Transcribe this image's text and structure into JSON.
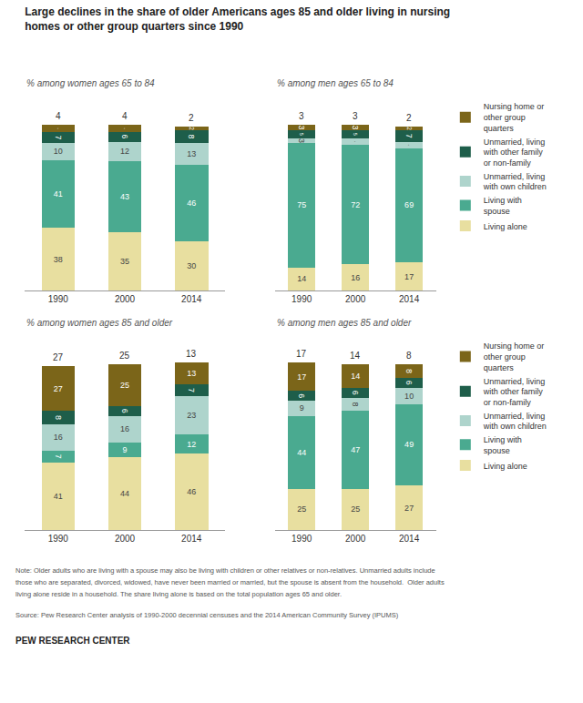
{
  "title": "Large declines in the share of older Americans ages 85 and older living in nursing\nhomes or other group quarters since 1990",
  "annotations": [
    "Note: Older adults who are living with a spouse may also be living with children or other relatives or non-relatives. Unmarried adults include",
    "those who are separated, divorced, widowed, have never been married or married, but the spouse is absent from the household.  Older adults",
    "living alone reside in a household. The share living alone is based on the total population ages 65 and older.",
    "Source: Pew Research Center analysis of 1990-2000 decennial censuses and the 2014 American Community Survey (IPUMS)",
    "PEW RESEARCH CENTER"
  ],
  "chart_data": [
    {
      "type": "bar",
      "subtitle": "% among women ages 65 to 84",
      "categories": [
        "1990",
        "2000",
        "2014"
      ],
      "series": [
        {
          "name": "Living alone",
          "color": "#e8dfa0",
          "values": [
            38,
            35,
            30
          ]
        },
        {
          "name": "Living with\nspouse",
          "color": "#4aaa90",
          "values": [
            41,
            43,
            46
          ]
        },
        {
          "name": "Unmarried, living\nwith own children",
          "color": "#aed4cc",
          "values": [
            10,
            12,
            13
          ]
        },
        {
          "name": "Unmarried, living\nwith other family\nor non-family",
          "color": "#1e5e4a",
          "values": [
            7,
            6,
            8
          ]
        },
        {
          "name": "Nursing home or\nother group\nquarters",
          "color": "#7b6519",
          "values": [
            4,
            4,
            2
          ]
        }
      ],
      "stacked": true,
      "data_labels": true,
      "ylim": [
        0,
        118
      ],
      "yticks": [],
      "grid": false,
      "tick_labels": "x"
    },
    {
      "type": "bar",
      "subtitle": "% among men ages 65 to 84",
      "categories": [
        "1990",
        "2000",
        "2014"
      ],
      "series": [
        {
          "name": "Living alone",
          "color": "#e8dfa0",
          "values": [
            14,
            16,
            17
          ]
        },
        {
          "name": "Living with\nspouse",
          "color": "#4aaa90",
          "values": [
            75,
            72,
            69
          ]
        },
        {
          "name": "Unmarried, living\nwith own children",
          "color": "#aed4cc",
          "values": [
            3,
            4,
            4
          ]
        },
        {
          "name": "Unmarried, living\nwith other family\nor non-family",
          "color": "#1e5e4a",
          "values": [
            5,
            5,
            7
          ]
        },
        {
          "name": "Nursing home or\nother group\nquarters",
          "color": "#7b6519",
          "values": [
            3,
            3,
            2
          ]
        }
      ],
      "stacked": true,
      "data_labels": true,
      "ylim": [
        0,
        118
      ],
      "yticks": [],
      "grid": false,
      "tick_labels": "x",
      "legend": "right"
    },
    {
      "type": "bar",
      "subtitle": "% among women ages 85 and older",
      "categories": [
        "1990",
        "2000",
        "2014"
      ],
      "series": [
        {
          "name": "Living alone",
          "color": "#e8dfa0",
          "values": [
            41,
            44,
            46
          ]
        },
        {
          "name": "Living with\nspouse",
          "color": "#4aaa90",
          "values": [
            7,
            9,
            12
          ]
        },
        {
          "name": "Unmarried, living\nwith own children",
          "color": "#aed4cc",
          "values": [
            16,
            16,
            23
          ]
        },
        {
          "name": "Unmarried, living\nwith other family\nor non-family",
          "color": "#1e5e4a",
          "values": [
            8,
            6,
            7
          ]
        },
        {
          "name": "Nursing home or\nother group\nquarters",
          "color": "#7b6519",
          "values": [
            27,
            25,
            13
          ]
        }
      ],
      "stacked": true,
      "data_labels": true,
      "ylim": [
        0,
        118
      ],
      "yticks": [],
      "grid": false,
      "tick_labels": "x"
    },
    {
      "type": "bar",
      "subtitle": "% among men ages 85 and older",
      "categories": [
        "1990",
        "2000",
        "2014"
      ],
      "series": [
        {
          "name": "Living alone",
          "color": "#e8dfa0",
          "values": [
            25,
            25,
            27
          ]
        },
        {
          "name": "Living with\nspouse",
          "color": "#4aaa90",
          "values": [
            44,
            47,
            49
          ]
        },
        {
          "name": "Unmarried, living\nwith own children",
          "color": "#aed4cc",
          "values": [
            9,
            8,
            10
          ]
        },
        {
          "name": "Unmarried, living\nwith other family\nor non-family",
          "color": "#1e5e4a",
          "values": [
            6,
            6,
            6
          ]
        },
        {
          "name": "Nursing home or\nother group\nquarters",
          "color": "#7b6519",
          "values": [
            17,
            14,
            8
          ]
        }
      ],
      "stacked": true,
      "data_labels": true,
      "ylim": [
        0,
        118
      ],
      "yticks": [],
      "grid": false,
      "tick_labels": "x",
      "legend": "right"
    }
  ]
}
